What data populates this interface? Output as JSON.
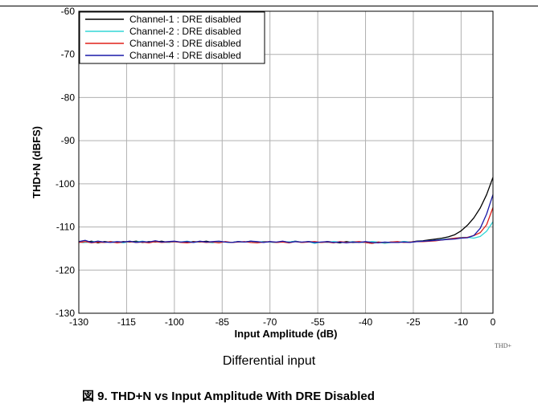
{
  "chart_data": {
    "type": "line",
    "title": "",
    "xlabel": "Input Amplitude (dB)",
    "ylabel": "THD+N (dBFS)",
    "xlim": [
      -130,
      0
    ],
    "ylim": [
      -130,
      -60
    ],
    "xticks": [
      -130,
      -115,
      -100,
      -85,
      -70,
      -55,
      -40,
      -25,
      -10,
      0
    ],
    "yticks": [
      -60,
      -70,
      -80,
      -90,
      -100,
      -110,
      -120,
      -130
    ],
    "grid": true,
    "legend_position": "top-left",
    "series": [
      {
        "name": "Channel-1 : DRE disabled",
        "color": "#000000",
        "x": [
          -130,
          -128,
          -126,
          -124,
          -122,
          -120,
          -118,
          -116,
          -114,
          -112,
          -110,
          -108,
          -106,
          -104,
          -102,
          -100,
          -98,
          -96,
          -94,
          -92,
          -90,
          -88,
          -86,
          -84,
          -82,
          -80,
          -78,
          -76,
          -74,
          -72,
          -70,
          -68,
          -66,
          -64,
          -62,
          -60,
          -58,
          -56,
          -54,
          -52,
          -50,
          -48,
          -46,
          -44,
          -42,
          -40,
          -38,
          -36,
          -34,
          -32,
          -30,
          -28,
          -26,
          -24,
          -22,
          -20,
          -18,
          -16,
          -14,
          -12,
          -10,
          -8,
          -6,
          -4,
          -2,
          0
        ],
        "y": [
          -113.5,
          -113.6,
          -113.3,
          -113.7,
          -113.4,
          -113.5,
          -113.6,
          -113.4,
          -113.5,
          -113.3,
          -113.6,
          -113.4,
          -113.5,
          -113.3,
          -113.6,
          -113.4,
          -113.5,
          -113.6,
          -113.4,
          -113.5,
          -113.3,
          -113.6,
          -113.4,
          -113.5,
          -113.6,
          -113.4,
          -113.5,
          -113.3,
          -113.6,
          -113.4,
          -113.5,
          -113.6,
          -113.4,
          -113.5,
          -113.3,
          -113.6,
          -113.4,
          -113.5,
          -113.6,
          -113.4,
          -113.5,
          -113.7,
          -113.4,
          -113.6,
          -113.5,
          -113.6,
          -113.8,
          -113.5,
          -113.7,
          -113.5,
          -113.6,
          -113.4,
          -113.5,
          -113.3,
          -113.2,
          -113.0,
          -112.8,
          -112.6,
          -112.3,
          -111.8,
          -110.9,
          -109.6,
          -107.9,
          -105.6,
          -102.5,
          -98.5
        ]
      },
      {
        "name": "Channel-2 : DRE disabled",
        "color": "#33d6d6",
        "x": [
          -130,
          -128,
          -126,
          -124,
          -122,
          -120,
          -118,
          -116,
          -114,
          -112,
          -110,
          -108,
          -106,
          -104,
          -102,
          -100,
          -98,
          -96,
          -94,
          -92,
          -90,
          -88,
          -86,
          -84,
          -82,
          -80,
          -78,
          -76,
          -74,
          -72,
          -70,
          -68,
          -66,
          -64,
          -62,
          -60,
          -58,
          -56,
          -54,
          -52,
          -50,
          -48,
          -46,
          -44,
          -42,
          -40,
          -38,
          -36,
          -34,
          -32,
          -30,
          -28,
          -26,
          -24,
          -22,
          -20,
          -18,
          -16,
          -14,
          -12,
          -10,
          -8,
          -6,
          -4,
          -2,
          0
        ],
        "y": [
          -113.4,
          -113.6,
          -113.5,
          -113.3,
          -113.6,
          -113.4,
          -113.5,
          -113.7,
          -113.4,
          -113.5,
          -113.3,
          -113.6,
          -113.4,
          -113.5,
          -113.6,
          -113.4,
          -113.5,
          -113.3,
          -113.6,
          -113.4,
          -113.5,
          -113.7,
          -113.4,
          -113.5,
          -113.6,
          -113.4,
          -113.5,
          -113.3,
          -113.6,
          -113.4,
          -113.5,
          -113.6,
          -113.4,
          -113.5,
          -113.3,
          -113.6,
          -113.4,
          -113.8,
          -113.5,
          -113.6,
          -113.4,
          -113.5,
          -113.6,
          -113.4,
          -113.5,
          -113.6,
          -113.4,
          -113.5,
          -113.8,
          -113.6,
          -113.5,
          -113.4,
          -113.5,
          -113.4,
          -113.3,
          -113.2,
          -113.1,
          -112.9,
          -112.7,
          -112.6,
          -112.4,
          -112.4,
          -112.6,
          -112.2,
          -111.0,
          -108.8
        ]
      },
      {
        "name": "Channel-3 : DRE disabled",
        "color": "#e0201a",
        "x": [
          -130,
          -128,
          -126,
          -124,
          -122,
          -120,
          -118,
          -116,
          -114,
          -112,
          -110,
          -108,
          -106,
          -104,
          -102,
          -100,
          -98,
          -96,
          -94,
          -92,
          -90,
          -88,
          -86,
          -84,
          -82,
          -80,
          -78,
          -76,
          -74,
          -72,
          -70,
          -68,
          -66,
          -64,
          -62,
          -60,
          -58,
          -56,
          -54,
          -52,
          -50,
          -48,
          -46,
          -44,
          -42,
          -40,
          -38,
          -36,
          -34,
          -32,
          -30,
          -28,
          -26,
          -24,
          -22,
          -20,
          -18,
          -16,
          -14,
          -12,
          -10,
          -8,
          -6,
          -4,
          -2,
          0
        ],
        "y": [
          -113.6,
          -113.4,
          -113.7,
          -113.5,
          -113.6,
          -113.4,
          -113.7,
          -113.5,
          -113.4,
          -113.6,
          -113.5,
          -113.7,
          -113.4,
          -113.6,
          -113.5,
          -113.4,
          -113.6,
          -113.7,
          -113.5,
          -113.4,
          -113.6,
          -113.5,
          -113.7,
          -113.4,
          -113.6,
          -113.5,
          -113.4,
          -113.6,
          -113.7,
          -113.5,
          -113.4,
          -113.6,
          -113.5,
          -113.7,
          -113.4,
          -113.6,
          -113.5,
          -113.4,
          -113.6,
          -113.5,
          -113.7,
          -113.4,
          -113.6,
          -113.5,
          -113.4,
          -113.6,
          -113.8,
          -113.5,
          -113.6,
          -113.5,
          -113.4,
          -113.6,
          -113.5,
          -113.4,
          -113.4,
          -113.3,
          -113.2,
          -113.0,
          -112.8,
          -112.6,
          -112.5,
          -112.4,
          -112.0,
          -111.3,
          -109.5,
          -105.5
        ]
      },
      {
        "name": "Channel-4 : DRE disabled",
        "color": "#1a1aa8",
        "x": [
          -130,
          -128,
          -126,
          -124,
          -122,
          -120,
          -118,
          -116,
          -114,
          -112,
          -110,
          -108,
          -106,
          -104,
          -102,
          -100,
          -98,
          -96,
          -94,
          -92,
          -90,
          -88,
          -86,
          -84,
          -82,
          -80,
          -78,
          -76,
          -74,
          -72,
          -70,
          -68,
          -66,
          -64,
          -62,
          -60,
          -58,
          -56,
          -54,
          -52,
          -50,
          -48,
          -46,
          -44,
          -42,
          -40,
          -38,
          -36,
          -34,
          -32,
          -30,
          -28,
          -26,
          -24,
          -22,
          -20,
          -18,
          -16,
          -14,
          -12,
          -10,
          -8,
          -6,
          -4,
          -2,
          0
        ],
        "y": [
          -113.4,
          -113.1,
          -113.6,
          -113.3,
          -113.5,
          -113.6,
          -113.4,
          -113.5,
          -113.3,
          -113.6,
          -113.4,
          -113.5,
          -113.2,
          -113.5,
          -113.4,
          -113.3,
          -113.5,
          -113.4,
          -113.6,
          -113.3,
          -113.5,
          -113.4,
          -113.3,
          -113.5,
          -113.6,
          -113.4,
          -113.5,
          -113.3,
          -113.4,
          -113.6,
          -113.4,
          -113.5,
          -113.3,
          -113.6,
          -113.4,
          -113.5,
          -113.4,
          -113.6,
          -113.5,
          -113.4,
          -113.6,
          -113.5,
          -113.7,
          -113.5,
          -113.6,
          -113.4,
          -113.6,
          -113.7,
          -113.5,
          -113.6,
          -113.6,
          -113.5,
          -113.6,
          -113.4,
          -113.3,
          -113.2,
          -113.1,
          -113.0,
          -112.9,
          -112.8,
          -112.6,
          -112.5,
          -112.0,
          -110.3,
          -107.0,
          -102.5
        ]
      }
    ]
  },
  "figure_code": "THD+",
  "subtitle": "Differential input",
  "caption": "図 9. THD+N vs Input Amplitude With DRE Disabled"
}
